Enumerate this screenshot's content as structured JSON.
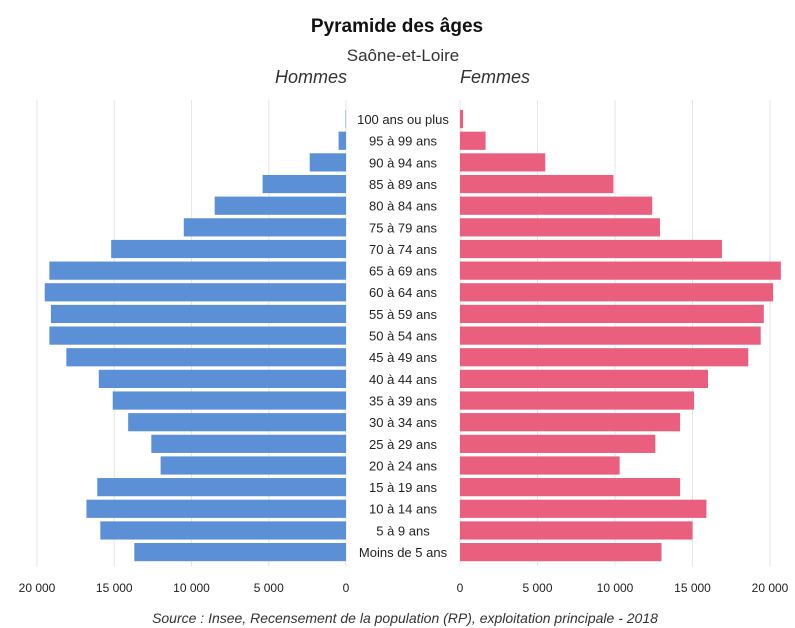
{
  "chart_data": {
    "type": "bar",
    "title": "Pyramide des âges",
    "subtitle": "Saône-et-Loire",
    "left_label": "Hommes",
    "right_label": "Femmes",
    "source": "Source : Insee, Recensement de la population (RP), exploitation principale - 2018",
    "categories": [
      "100 ans ou plus",
      "95 à 99 ans",
      "90 à 94 ans",
      "85 à 89 ans",
      "80 à 84 ans",
      "75 à 79 ans",
      "70 à 74 ans",
      "65 à 69 ans",
      "60 à 64 ans",
      "55 à 59 ans",
      "50 à 54 ans",
      "45 à 49 ans",
      "40 à 44 ans",
      "35 à 39 ans",
      "30 à 34 ans",
      "25 à 29 ans",
      "20 à 24 ans",
      "15 à 19 ans",
      "10 à 14 ans",
      "5 à 9 ans",
      "Moins de 5 ans"
    ],
    "series": [
      {
        "name": "Hommes",
        "color": "#5b8fd6",
        "values": [
          30,
          480,
          2350,
          5400,
          8500,
          10500,
          15200,
          19200,
          19500,
          19100,
          19200,
          18100,
          16000,
          15100,
          14100,
          12600,
          12000,
          16100,
          16800,
          15900,
          13700
        ]
      },
      {
        "name": "Femmes",
        "color": "#ea5f7e",
        "values": [
          200,
          1650,
          5500,
          9900,
          12400,
          12900,
          16900,
          20700,
          20200,
          19600,
          19400,
          18600,
          16000,
          15100,
          14200,
          12600,
          10300,
          14200,
          15900,
          15000,
          13000
        ]
      }
    ],
    "xlim": [
      0,
      20000
    ],
    "xticks_left": [
      "20 000",
      "15 000",
      "10 000",
      "5 000",
      "0"
    ],
    "xticks_right": [
      "0",
      "5 000",
      "10 000",
      "15 000",
      "20 000"
    ],
    "tick_values": [
      20000,
      15000,
      10000,
      5000,
      0
    ],
    "grid": true
  }
}
